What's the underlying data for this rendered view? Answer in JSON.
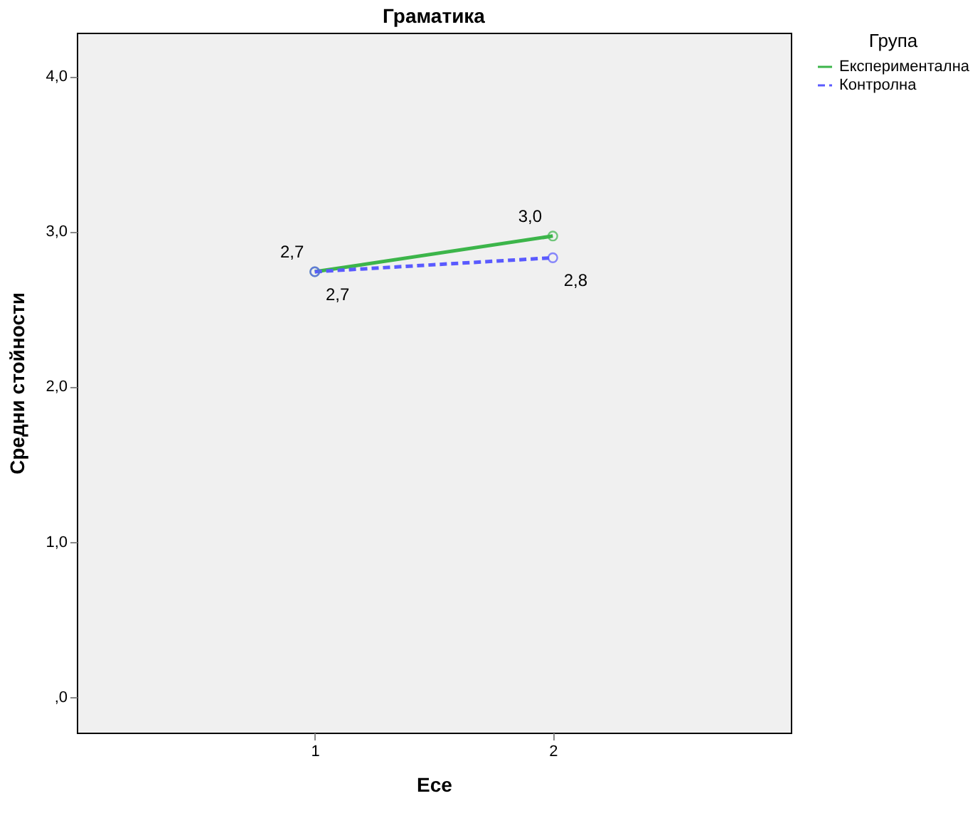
{
  "chart_data": {
    "type": "line",
    "title": "Граматика",
    "xlabel": "Есе",
    "ylabel": "Средни стойности",
    "legend_title": "Група",
    "legend": "top right",
    "marker": "circle",
    "grid": false,
    "categories": [
      "1",
      "2"
    ],
    "ylim": [
      -0.23,
      4.28
    ],
    "yticks": [
      {
        "value": 0,
        "label": ",0"
      },
      {
        "value": 1,
        "label": "1,0"
      },
      {
        "value": 2,
        "label": "2,0"
      },
      {
        "value": 3,
        "label": "3,0"
      },
      {
        "value": 4,
        "label": "4,0"
      }
    ],
    "series": [
      {
        "name": "Експериментална",
        "color": "#3cb54a",
        "line_style": "solid",
        "values": [
          2.74,
          2.97
        ],
        "value_labels": [
          "2,7",
          "3,0"
        ]
      },
      {
        "name": "Контролна",
        "color": "#5a5aff",
        "line_style": "dashed",
        "values": [
          2.74,
          2.83
        ],
        "value_labels": [
          "2,7",
          "2,8"
        ]
      }
    ]
  }
}
